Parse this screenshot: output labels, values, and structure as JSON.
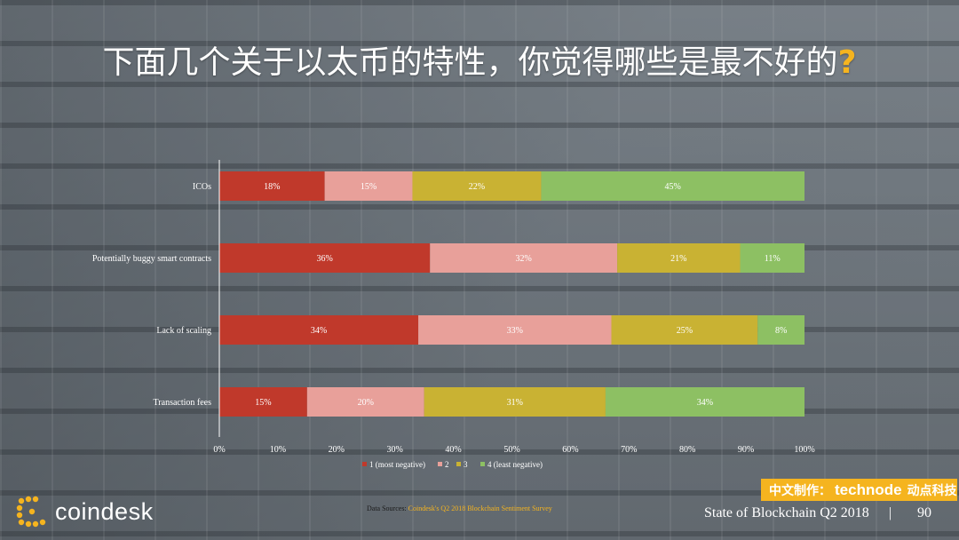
{
  "slide": {
    "title_main": "下面几个关于以太币的特性，你觉得哪些是最不好的",
    "title_mark": "?",
    "source_prefix": "Data Sources: ",
    "source_link": "Coindesk's Q2 2018 Blockchain Sentiment Survey",
    "brand": "coindesk",
    "badge_prefix": "中文制作：",
    "badge_brand": "technode",
    "badge_suffix": "动点科技",
    "footer_title": "State of Blockchain Q2 2018",
    "footer_sep": "|",
    "page_number": "90"
  },
  "colors": {
    "s1": "#c0392b",
    "s2": "#e8a09a",
    "s3": "#c9b233",
    "s4": "#8dc063",
    "accent": "#f5b41f"
  },
  "chart_data": {
    "type": "bar",
    "orientation": "horizontal",
    "stacked": true,
    "categories": [
      "ICOs",
      "Potentially buggy smart contracts",
      "Lack of scaling",
      "Transaction fees"
    ],
    "series": [
      {
        "name": "1 (most negative)",
        "values": [
          18,
          36,
          34,
          15
        ],
        "labels": [
          "18%",
          "36%",
          "34%",
          "15%"
        ]
      },
      {
        "name": "2",
        "values": [
          15,
          32,
          33,
          20
        ],
        "labels": [
          "15%",
          "32%",
          "33%",
          "20%"
        ]
      },
      {
        "name": "3",
        "values": [
          22,
          21,
          25,
          31
        ],
        "labels": [
          "22%",
          "21%",
          "25%",
          "31%"
        ]
      },
      {
        "name": "4 (least negative)",
        "values": [
          45,
          11,
          8,
          34
        ],
        "labels": [
          "45%",
          "11%",
          "8%",
          "34%"
        ]
      }
    ],
    "xlim": [
      0,
      100
    ],
    "x_ticks": [
      "0%",
      "10%",
      "20%",
      "30%",
      "40%",
      "50%",
      "60%",
      "70%",
      "80%",
      "90%",
      "100%"
    ],
    "legend": "bottom",
    "grid": false
  }
}
